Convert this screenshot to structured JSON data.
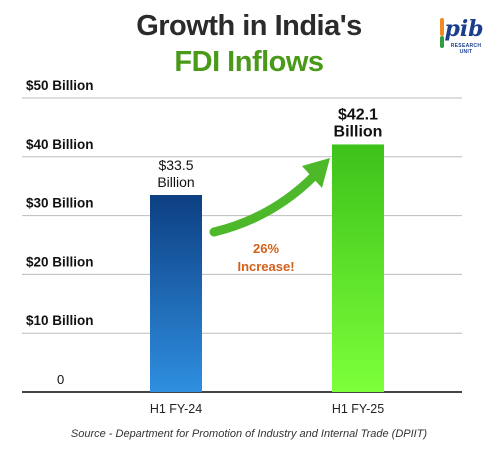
{
  "header": {
    "title_line1": "Growth in India's",
    "title_line2": "FDI Inflows",
    "logo_text": "pib",
    "logo_subtext": "RESEARCH UNIT"
  },
  "annotation": {
    "line1": "26%",
    "line2": "Increase!"
  },
  "source": "Source - Department for Promotion of Industry and Internal Trade (DPIIT)",
  "chart_data": {
    "type": "bar",
    "categories": [
      "H1 FY-24",
      "H1 FY-25"
    ],
    "values": [
      33.5,
      42.1
    ],
    "data_labels": [
      [
        "$33.5",
        "Billion"
      ],
      [
        "$42.1",
        "Billion"
      ]
    ],
    "ylim": [
      0,
      50
    ],
    "y_ticks": [
      {
        "value": 0,
        "label": "0"
      },
      {
        "value": 10,
        "label": "$10 Billion"
      },
      {
        "value": 20,
        "label": "$20 Billion"
      },
      {
        "value": 30,
        "label": "$30 Billion"
      },
      {
        "value": 40,
        "label": "$40 Billion"
      },
      {
        "value": 50,
        "label": "$50 Billion"
      }
    ],
    "grid": true,
    "colors": {
      "bar1_top": "#0d3f82",
      "bar1_bottom": "#2f8fe0",
      "bar2_top": "#3cc21a",
      "bar2_bottom": "#7dff3a",
      "arrow": "#4cb82a",
      "annotation": "#d2601a",
      "grid": "#bdbdbd",
      "axis": "#444444"
    }
  }
}
